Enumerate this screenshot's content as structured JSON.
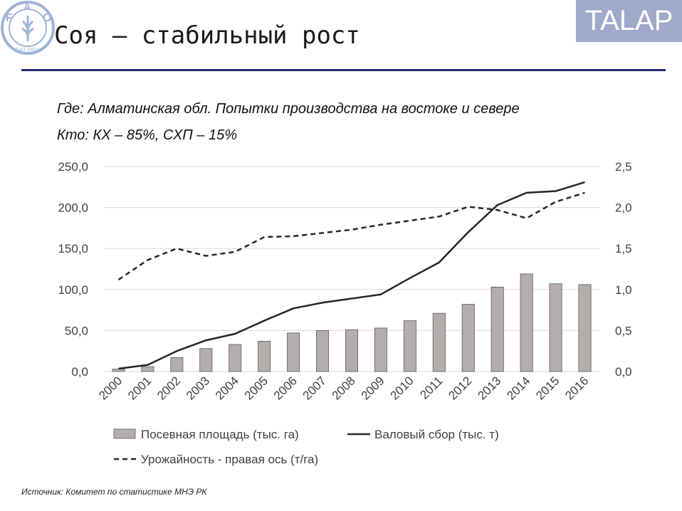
{
  "header": {
    "title": "Соя – стабильный рост",
    "brand": "TALAP",
    "logo_text": "FIAT PANIS"
  },
  "subtitle": {
    "where": "Где: Алматинская обл. Попытки производства на востоке и севере",
    "who": "Кто: КХ – 85%, СХП – 15%"
  },
  "chart_data": {
    "type": "bar",
    "categories": [
      "2000",
      "2001",
      "2002",
      "2003",
      "2004",
      "2005",
      "2006",
      "2007",
      "2008",
      "2009",
      "2010",
      "2011",
      "2012",
      "2013",
      "2014",
      "2015",
      "2016"
    ],
    "series": [
      {
        "name": "Посевная площадь (тыс. га)",
        "type": "bar",
        "axis": "left",
        "values": [
          3,
          6,
          17,
          28,
          33,
          37,
          47,
          50,
          51,
          53,
          62,
          71,
          82,
          103,
          119,
          107,
          106
        ]
      },
      {
        "name": "Валовый сбор (тыс. т)",
        "type": "line",
        "axis": "left",
        "values": [
          3.5,
          8,
          25,
          38,
          46,
          62,
          77,
          84,
          89,
          94,
          114,
          133,
          170,
          203,
          218,
          220,
          231
        ]
      },
      {
        "name": "Урожайность - правая ось (т/га)",
        "type": "line-dashed",
        "axis": "right",
        "values": [
          1.12,
          1.36,
          1.5,
          1.41,
          1.46,
          1.64,
          1.65,
          1.69,
          1.73,
          1.79,
          1.84,
          1.89,
          2.01,
          1.97,
          1.87,
          2.07,
          2.18
        ]
      }
    ],
    "y_left": {
      "min": 0,
      "max": 250,
      "ticks": [
        "0,0",
        "50,0",
        "100,0",
        "150,0",
        "200,0",
        "250,0"
      ]
    },
    "y_right": {
      "min": 0,
      "max": 2.5,
      "ticks": [
        "0,0",
        "0,5",
        "1,0",
        "1,5",
        "2,0",
        "2,5"
      ]
    },
    "grid": true,
    "legend_position": "bottom",
    "colors": {
      "bar_fill": "#b3aeac",
      "bar_stroke": "#5a5a5a",
      "line": "#262626",
      "grid": "#d9d9d9"
    }
  },
  "footer": {
    "source": "Источник: Комитет по статистике МНЭ РК"
  }
}
